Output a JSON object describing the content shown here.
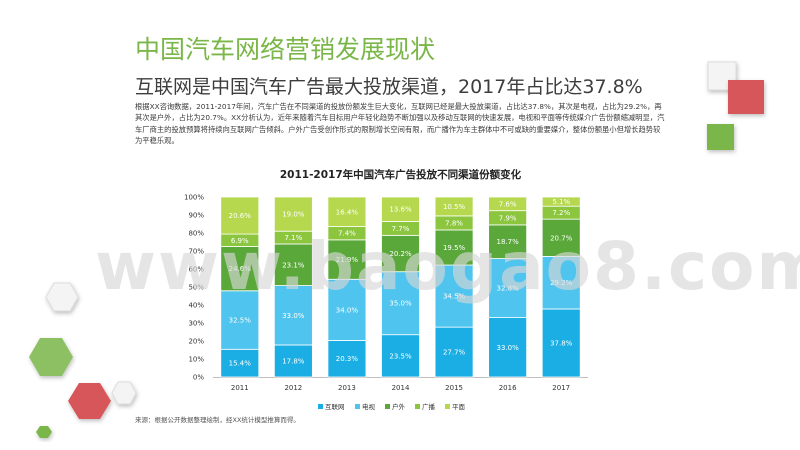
{
  "header": {
    "title": "中国汽车网络营销发展现状",
    "subtitle": "互联网是中国汽车广告最大投放渠道，2017年占比达37.8%"
  },
  "body_text": "根据XX咨询数据，2011-2017年间，汽车广告在不同渠道的投放份额发生巨大变化，互联网已经是最大投放渠道，占比达37.8%，其次是电视，占比为29.2%，再其次是户外，占比为20.7%。XX分析认为，近年来随着汽车目标用户年轻化趋势不断加强以及移动互联网的快速发展，电视和平面等传统媒介广告份额缩减明显，汽车厂商主的投放预算将持续向互联网广告倾斜。户外广告受创作形式的限制增长空间有限，而广播作为车主群体中不可或缺的重要媒介，整体份额虽小但增长趋势较为平稳乐观。",
  "source": "来源：根据公开数据整理绘制，经XX统计模型推算而得。",
  "watermark": "www.baogao8.com",
  "colors": {
    "title": "#7ab648",
    "互联网": "#1aaee4",
    "电视": "#4fc4ee",
    "户外": "#5aa83a",
    "广播": "#8cc63f",
    "平面": "#b6d84e"
  },
  "chart_data": {
    "type": "bar",
    "stacked": true,
    "title": "2011-2017年中国汽车广告投放不同渠道份额变化",
    "categories": [
      "2011",
      "2012",
      "2013",
      "2014",
      "2015",
      "2016",
      "2017"
    ],
    "y_ticks": [
      "0%",
      "10%",
      "20%",
      "30%",
      "40%",
      "50%",
      "60%",
      "70%",
      "80%",
      "90%",
      "100%"
    ],
    "ylim": [
      0,
      100
    ],
    "legend_position": "bottom",
    "grid": false,
    "series": [
      {
        "name": "互联网",
        "values": [
          15.4,
          17.8,
          20.3,
          23.5,
          27.7,
          33.0,
          37.8
        ],
        "labels": [
          "15.4%",
          "17.8%",
          "20.3%",
          "23.5%",
          "27.7%",
          "33.0%",
          "37.8%"
        ]
      },
      {
        "name": "电视",
        "values": [
          32.5,
          33.0,
          34.0,
          35.0,
          34.5,
          32.8,
          29.2
        ],
        "labels": [
          "32.5%",
          "33.0%",
          "34.0%",
          "35.0%",
          "34.5%",
          "32.8%",
          "29.2%"
        ]
      },
      {
        "name": "户外",
        "values": [
          24.6,
          23.1,
          21.9,
          20.2,
          19.5,
          18.7,
          20.7
        ],
        "labels": [
          "24.6%",
          "23.1%",
          "21.9%",
          "20.2%",
          "19.5%",
          "18.7%",
          "20.7%"
        ]
      },
      {
        "name": "广播",
        "values": [
          6.9,
          7.1,
          7.4,
          7.7,
          7.8,
          7.9,
          7.2
        ],
        "labels": [
          "6.9%",
          "7.1%",
          "7.4%",
          "7.7%",
          "7.8%",
          "7.9%",
          "7.2%"
        ]
      },
      {
        "name": "平面",
        "values": [
          20.6,
          19.0,
          16.4,
          13.6,
          10.5,
          7.6,
          5.1
        ],
        "labels": [
          "20.6%",
          "19.0%",
          "16.4%",
          "13.6%",
          "10.5%",
          "7.6%",
          "5.1%"
        ]
      }
    ]
  }
}
